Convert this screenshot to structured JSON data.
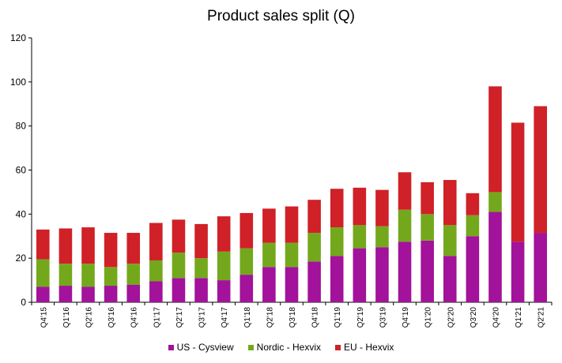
{
  "chart_data": {
    "type": "bar",
    "stacked": true,
    "title": "Product sales split (Q)",
    "categories": [
      "Q4'15",
      "Q1'16",
      "Q2'16",
      "Q3'16",
      "Q4'16",
      "Q1'17",
      "Q2'17",
      "Q3'17",
      "Q4'17",
      "Q1'18",
      "Q2'18",
      "Q3'18",
      "Q4'18",
      "Q1'19",
      "Q2'19",
      "Q3'19",
      "Q4'19",
      "Q1'20",
      "Q2'20",
      "Q3'20",
      "Q4'20",
      "Q1'21",
      "Q2'21"
    ],
    "ylim": [
      0,
      120
    ],
    "yticks": [
      0,
      20,
      40,
      60,
      80,
      100,
      120
    ],
    "legend_position": "bottom",
    "grid": false,
    "series": [
      {
        "name": "US - Cysview",
        "color": "#a2129a",
        "values": [
          7,
          7.5,
          7,
          7.5,
          8,
          9.5,
          11,
          11,
          10,
          12.5,
          16,
          16,
          18.5,
          21,
          24.5,
          25,
          27.5,
          28,
          21,
          30,
          41,
          27.5,
          31.5
        ]
      },
      {
        "name": "Nordic - Hexvix",
        "color": "#74a81c",
        "values": [
          12.5,
          10,
          10.5,
          8.5,
          9.5,
          9.5,
          11.5,
          9,
          13,
          12,
          11,
          11,
          13,
          13,
          10.5,
          9.5,
          14.5,
          12,
          14,
          9.5,
          9,
          0,
          0
        ]
      },
      {
        "name": "EU - Hexvix",
        "color": "#cf2127",
        "values": [
          13.5,
          16,
          16.5,
          15.5,
          14,
          17,
          15,
          15.5,
          16,
          16,
          15.5,
          16.5,
          15,
          17.5,
          17,
          16.5,
          17,
          14.5,
          20.5,
          10,
          48,
          54,
          57.5
        ]
      }
    ]
  }
}
